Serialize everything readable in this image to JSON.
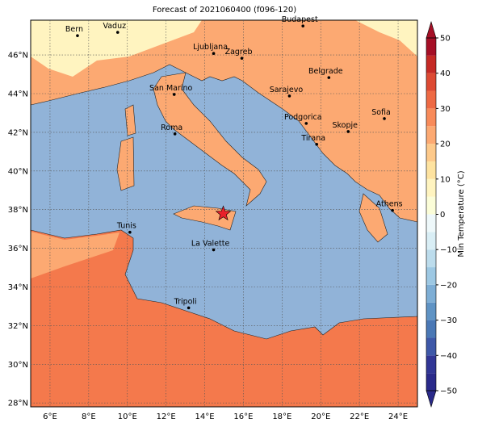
{
  "title": "Forecast of 2021060400 (f096-120)",
  "map": {
    "lonlim": [
      5,
      25
    ],
    "latlim": [
      27.8,
      47.8
    ],
    "lon_ticks": [
      {
        "value": 6,
        "label": "6°E"
      },
      {
        "value": 8,
        "label": "8°E"
      },
      {
        "value": 10,
        "label": "10°E"
      },
      {
        "value": 12,
        "label": "12°E"
      },
      {
        "value": 14,
        "label": "14°E"
      },
      {
        "value": 16,
        "label": "16°E"
      },
      {
        "value": 18,
        "label": "18°E"
      },
      {
        "value": 20,
        "label": "20°E"
      },
      {
        "value": 22,
        "label": "22°E"
      },
      {
        "value": 24,
        "label": "24°E"
      }
    ],
    "lat_ticks": [
      {
        "value": 28,
        "label": "28°N"
      },
      {
        "value": 30,
        "label": "30°N"
      },
      {
        "value": 32,
        "label": "32°N"
      },
      {
        "value": 34,
        "label": "34°N"
      },
      {
        "value": 36,
        "label": "36°N"
      },
      {
        "value": 38,
        "label": "38°N"
      },
      {
        "value": 40,
        "label": "40°N"
      },
      {
        "value": 42,
        "label": "42°N"
      },
      {
        "value": 44,
        "label": "44°N"
      },
      {
        "value": 46,
        "label": "46°N"
      }
    ],
    "cities": [
      {
        "name": "Bern",
        "lon": 7.42,
        "lat": 47.0
      },
      {
        "name": "Vaduz",
        "lon": 9.5,
        "lat": 47.17
      },
      {
        "name": "Budapest",
        "lon": 19.08,
        "lat": 47.5
      },
      {
        "name": "Ljubljana",
        "lon": 14.46,
        "lat": 46.08
      },
      {
        "name": "Zagreb",
        "lon": 15.92,
        "lat": 45.83
      },
      {
        "name": "Belgrade",
        "lon": 20.42,
        "lat": 44.83
      },
      {
        "name": "San Marino",
        "lon": 12.42,
        "lat": 43.96
      },
      {
        "name": "Sarajevo",
        "lon": 18.38,
        "lat": 43.88
      },
      {
        "name": "Sofia",
        "lon": 23.29,
        "lat": 42.71
      },
      {
        "name": "Roma",
        "lon": 12.46,
        "lat": 41.92
      },
      {
        "name": "Podgorica",
        "lon": 19.25,
        "lat": 42.46
      },
      {
        "name": "Skopje",
        "lon": 21.42,
        "lat": 42.04
      },
      {
        "name": "Tirana",
        "lon": 19.79,
        "lat": 41.38
      },
      {
        "name": "Athens",
        "lon": 23.71,
        "lat": 37.96
      },
      {
        "name": "Tunis",
        "lon": 10.13,
        "lat": 36.83
      },
      {
        "name": "La Valette",
        "lon": 14.46,
        "lat": 35.92
      },
      {
        "name": "Tripoli",
        "lon": 13.17,
        "lat": 32.92
      }
    ],
    "star": {
      "lon": 14.96,
      "lat": 37.79
    }
  },
  "colorbar": {
    "label": "Min Temperature (°C)",
    "lim": [
      -50,
      50
    ],
    "levels": [
      -50,
      -45,
      -40,
      -35,
      -30,
      -25,
      -20,
      -15,
      -10,
      -5,
      0,
      5,
      10,
      15,
      20,
      25,
      30,
      35,
      40,
      45,
      50
    ],
    "colors": [
      "#2a2a8a",
      "#313695",
      "#3e58a8",
      "#4a78b5",
      "#5f93c4",
      "#7eaed5",
      "#9dc8e3",
      "#bcdcec",
      "#d9eef5",
      "#eef8fa",
      "#fbfdd8",
      "#fff4c0",
      "#fee3a0",
      "#fdc98a",
      "#fca972",
      "#f88b5a",
      "#ee6a44",
      "#dd4a33",
      "#c52a25",
      "#a50f26"
    ],
    "ticks": [
      {
        "value": -50,
        "label": "−50"
      },
      {
        "value": -40,
        "label": "−40"
      },
      {
        "value": -30,
        "label": "−30"
      },
      {
        "value": -20,
        "label": "−20"
      },
      {
        "value": -10,
        "label": "−10"
      },
      0,
      10,
      20,
      30,
      40,
      50
    ]
  }
}
